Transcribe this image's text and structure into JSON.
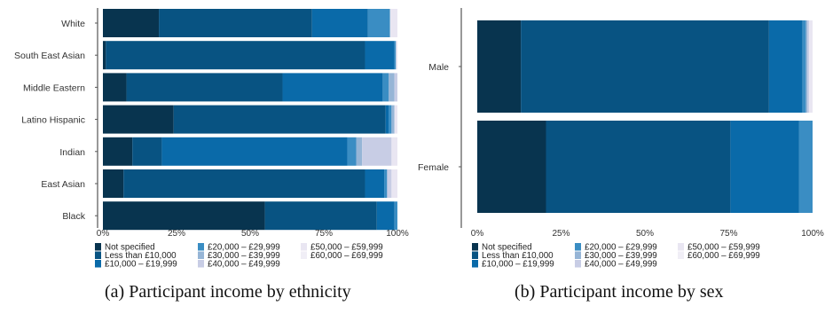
{
  "palette": [
    "#08344f",
    "#085382",
    "#0a6aa9",
    "#3a8dc3",
    "#96b5d6",
    "#c8cde5",
    "#e9e6f2"
  ],
  "legend": [
    "Not specified",
    "Less than £10,000",
    "£10,000 – £19,999",
    "£20,000 – £29,999",
    "£30,000 – £39,999",
    "£40,000 – £49,999",
    "£50,000 – £59,999",
    "£60,000 – £69,999"
  ],
  "captions": {
    "a": "(a) Participant income by ethnicity",
    "b": "(b) Participant income by sex"
  },
  "chart_data": [
    {
      "type": "bar",
      "orientation": "horizontal",
      "stacked": true,
      "categories": [
        "White",
        "South East Asian",
        "Middle Eastern",
        "Latino Hispanic",
        "Indian",
        "East Asian",
        "Black"
      ],
      "xlim": [
        0,
        100
      ],
      "xticks": [
        "0%",
        "25%",
        "50%",
        "75%",
        "100%"
      ],
      "legend_position": "bottom",
      "segments": [
        [
          19,
          52,
          19,
          7.5,
          0,
          0,
          2.5,
          0
        ],
        [
          1,
          88,
          10,
          0.5,
          0,
          0,
          0.5,
          0
        ],
        [
          8,
          53,
          34,
          2,
          2,
          1,
          0,
          0
        ],
        [
          24,
          72,
          1,
          1,
          1,
          0,
          1,
          0
        ],
        [
          10,
          10,
          63,
          3,
          2,
          10,
          2,
          0
        ],
        [
          7,
          82,
          6.5,
          1,
          0,
          1.5,
          2,
          0
        ],
        [
          55,
          38,
          6,
          1,
          0,
          0,
          0,
          0
        ]
      ]
    },
    {
      "type": "bar",
      "orientation": "horizontal",
      "stacked": true,
      "categories": [
        "Male",
        "Female"
      ],
      "xlim": [
        0,
        100
      ],
      "xticks": [
        "0%",
        "25%",
        "50%",
        "75%",
        "100%"
      ],
      "legend_position": "bottom",
      "segments": [
        [
          13,
          74,
          10,
          1,
          0.5,
          0.5,
          1,
          0
        ],
        [
          20.5,
          55,
          20.5,
          4,
          0,
          0,
          0,
          0
        ]
      ]
    }
  ]
}
